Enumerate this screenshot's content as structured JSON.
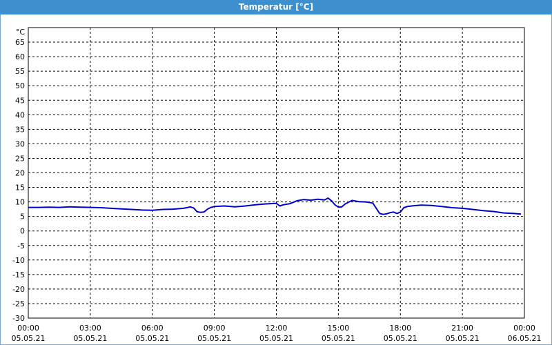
{
  "window": {
    "title": "Temperatur [°C]"
  },
  "chart_data": {
    "type": "line",
    "title": "Temperatur [°C]",
    "ylabel": "°C",
    "xlabel": "",
    "ylim": [
      -30,
      70
    ],
    "yticks": [
      65,
      60,
      55,
      50,
      45,
      40,
      35,
      30,
      25,
      20,
      15,
      10,
      5,
      0,
      -5,
      -10,
      -15,
      -20,
      -25,
      -30
    ],
    "xlim": [
      "05.05.21 00:00",
      "06.05.21 00:00"
    ],
    "xticks": [
      {
        "time": "00:00",
        "date": "05.05.21"
      },
      {
        "time": "03:00",
        "date": "05.05.21"
      },
      {
        "time": "06:00",
        "date": "05.05.21"
      },
      {
        "time": "09:00",
        "date": "05.05.21"
      },
      {
        "time": "12:00",
        "date": "05.05.21"
      },
      {
        "time": "15:00",
        "date": "05.05.21"
      },
      {
        "time": "18:00",
        "date": "05.05.21"
      },
      {
        "time": "21:00",
        "date": "05.05.21"
      },
      {
        "time": "00:00",
        "date": "06.05.21"
      }
    ],
    "grid": true,
    "series": [
      {
        "color": "#0000cc",
        "x": [
          "00:00",
          "00:30",
          "01:00",
          "01:30",
          "02:00",
          "02:30",
          "03:00",
          "03:30",
          "04:00",
          "04:30",
          "05:00",
          "05:30",
          "06:00",
          "06:30",
          "07:00",
          "07:30",
          "07:40",
          "07:50",
          "08:00",
          "08:10",
          "08:20",
          "08:30",
          "08:40",
          "08:50",
          "09:00",
          "09:30",
          "10:00",
          "10:30",
          "11:00",
          "11:30",
          "12:00",
          "12:10",
          "12:20",
          "12:40",
          "13:00",
          "13:20",
          "13:40",
          "14:00",
          "14:20",
          "14:30",
          "14:40",
          "14:50",
          "15:00",
          "15:10",
          "15:20",
          "15:40",
          "16:00",
          "16:20",
          "16:40",
          "17:00",
          "17:10",
          "17:20",
          "17:30",
          "17:40",
          "17:50",
          "18:00",
          "18:10",
          "18:20",
          "18:40",
          "19:00",
          "19:30",
          "20:00",
          "20:30",
          "21:00",
          "21:30",
          "22:00",
          "22:30",
          "23:00",
          "23:30",
          "23:50"
        ],
        "y": [
          8.1,
          8.1,
          8.2,
          8.1,
          8.3,
          8.2,
          8.1,
          8.0,
          7.8,
          7.6,
          7.4,
          7.2,
          7.1,
          7.4,
          7.5,
          7.8,
          8.0,
          8.3,
          7.9,
          6.6,
          6.4,
          6.5,
          7.5,
          8.1,
          8.4,
          8.6,
          8.3,
          8.6,
          9.0,
          9.3,
          9.5,
          8.6,
          9.0,
          9.4,
          10.4,
          10.8,
          10.6,
          10.9,
          10.7,
          11.3,
          10.4,
          9.0,
          8.2,
          8.3,
          9.3,
          10.5,
          10.1,
          10.0,
          9.6,
          6.0,
          5.7,
          5.9,
          6.3,
          6.5,
          6.0,
          6.5,
          8.0,
          8.4,
          8.7,
          8.9,
          8.8,
          8.4,
          8.0,
          7.8,
          7.4,
          7.0,
          6.7,
          6.2,
          6.0,
          5.8
        ]
      }
    ]
  }
}
